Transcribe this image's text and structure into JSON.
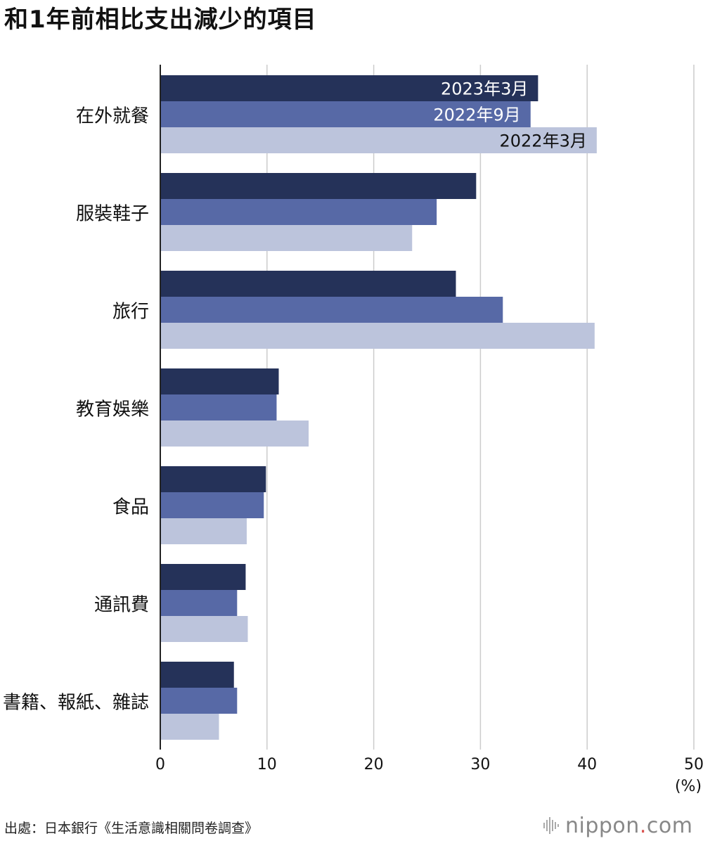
{
  "title": "和1年前相比支出減少的項目",
  "source": "出處：日本銀行《生活意識相關問卷調查》",
  "logo": {
    "name": "nippon",
    "dot": ".",
    "suffix": "com"
  },
  "colors": {
    "series_2023_03": "#253259",
    "series_2022_09": "#5769a6",
    "series_2022_03": "#bcc4dc",
    "grid": "#cccccc",
    "logo_dot": "#d9534f"
  },
  "chart_data": {
    "type": "bar",
    "orientation": "horizontal",
    "categories": [
      "在外就餐",
      "服裝鞋子",
      "旅行",
      "教育娛樂",
      "食品",
      "通訊費",
      "書籍、報紙、雜誌"
    ],
    "series": [
      {
        "name": "2023年3月",
        "values": [
          35.4,
          29.6,
          27.7,
          11.1,
          9.9,
          8.0,
          6.9
        ]
      },
      {
        "name": "2022年9月",
        "values": [
          34.7,
          25.9,
          32.1,
          10.9,
          9.7,
          7.2,
          7.2
        ]
      },
      {
        "name": "2022年3月",
        "values": [
          40.9,
          23.6,
          40.7,
          13.9,
          8.1,
          8.2,
          5.5
        ]
      }
    ],
    "xlim": [
      0,
      50
    ],
    "xticks": [
      "0",
      "10",
      "20",
      "30",
      "40",
      "50"
    ],
    "unit": "(%)",
    "grid": true,
    "legend": "inline labels on first category"
  }
}
